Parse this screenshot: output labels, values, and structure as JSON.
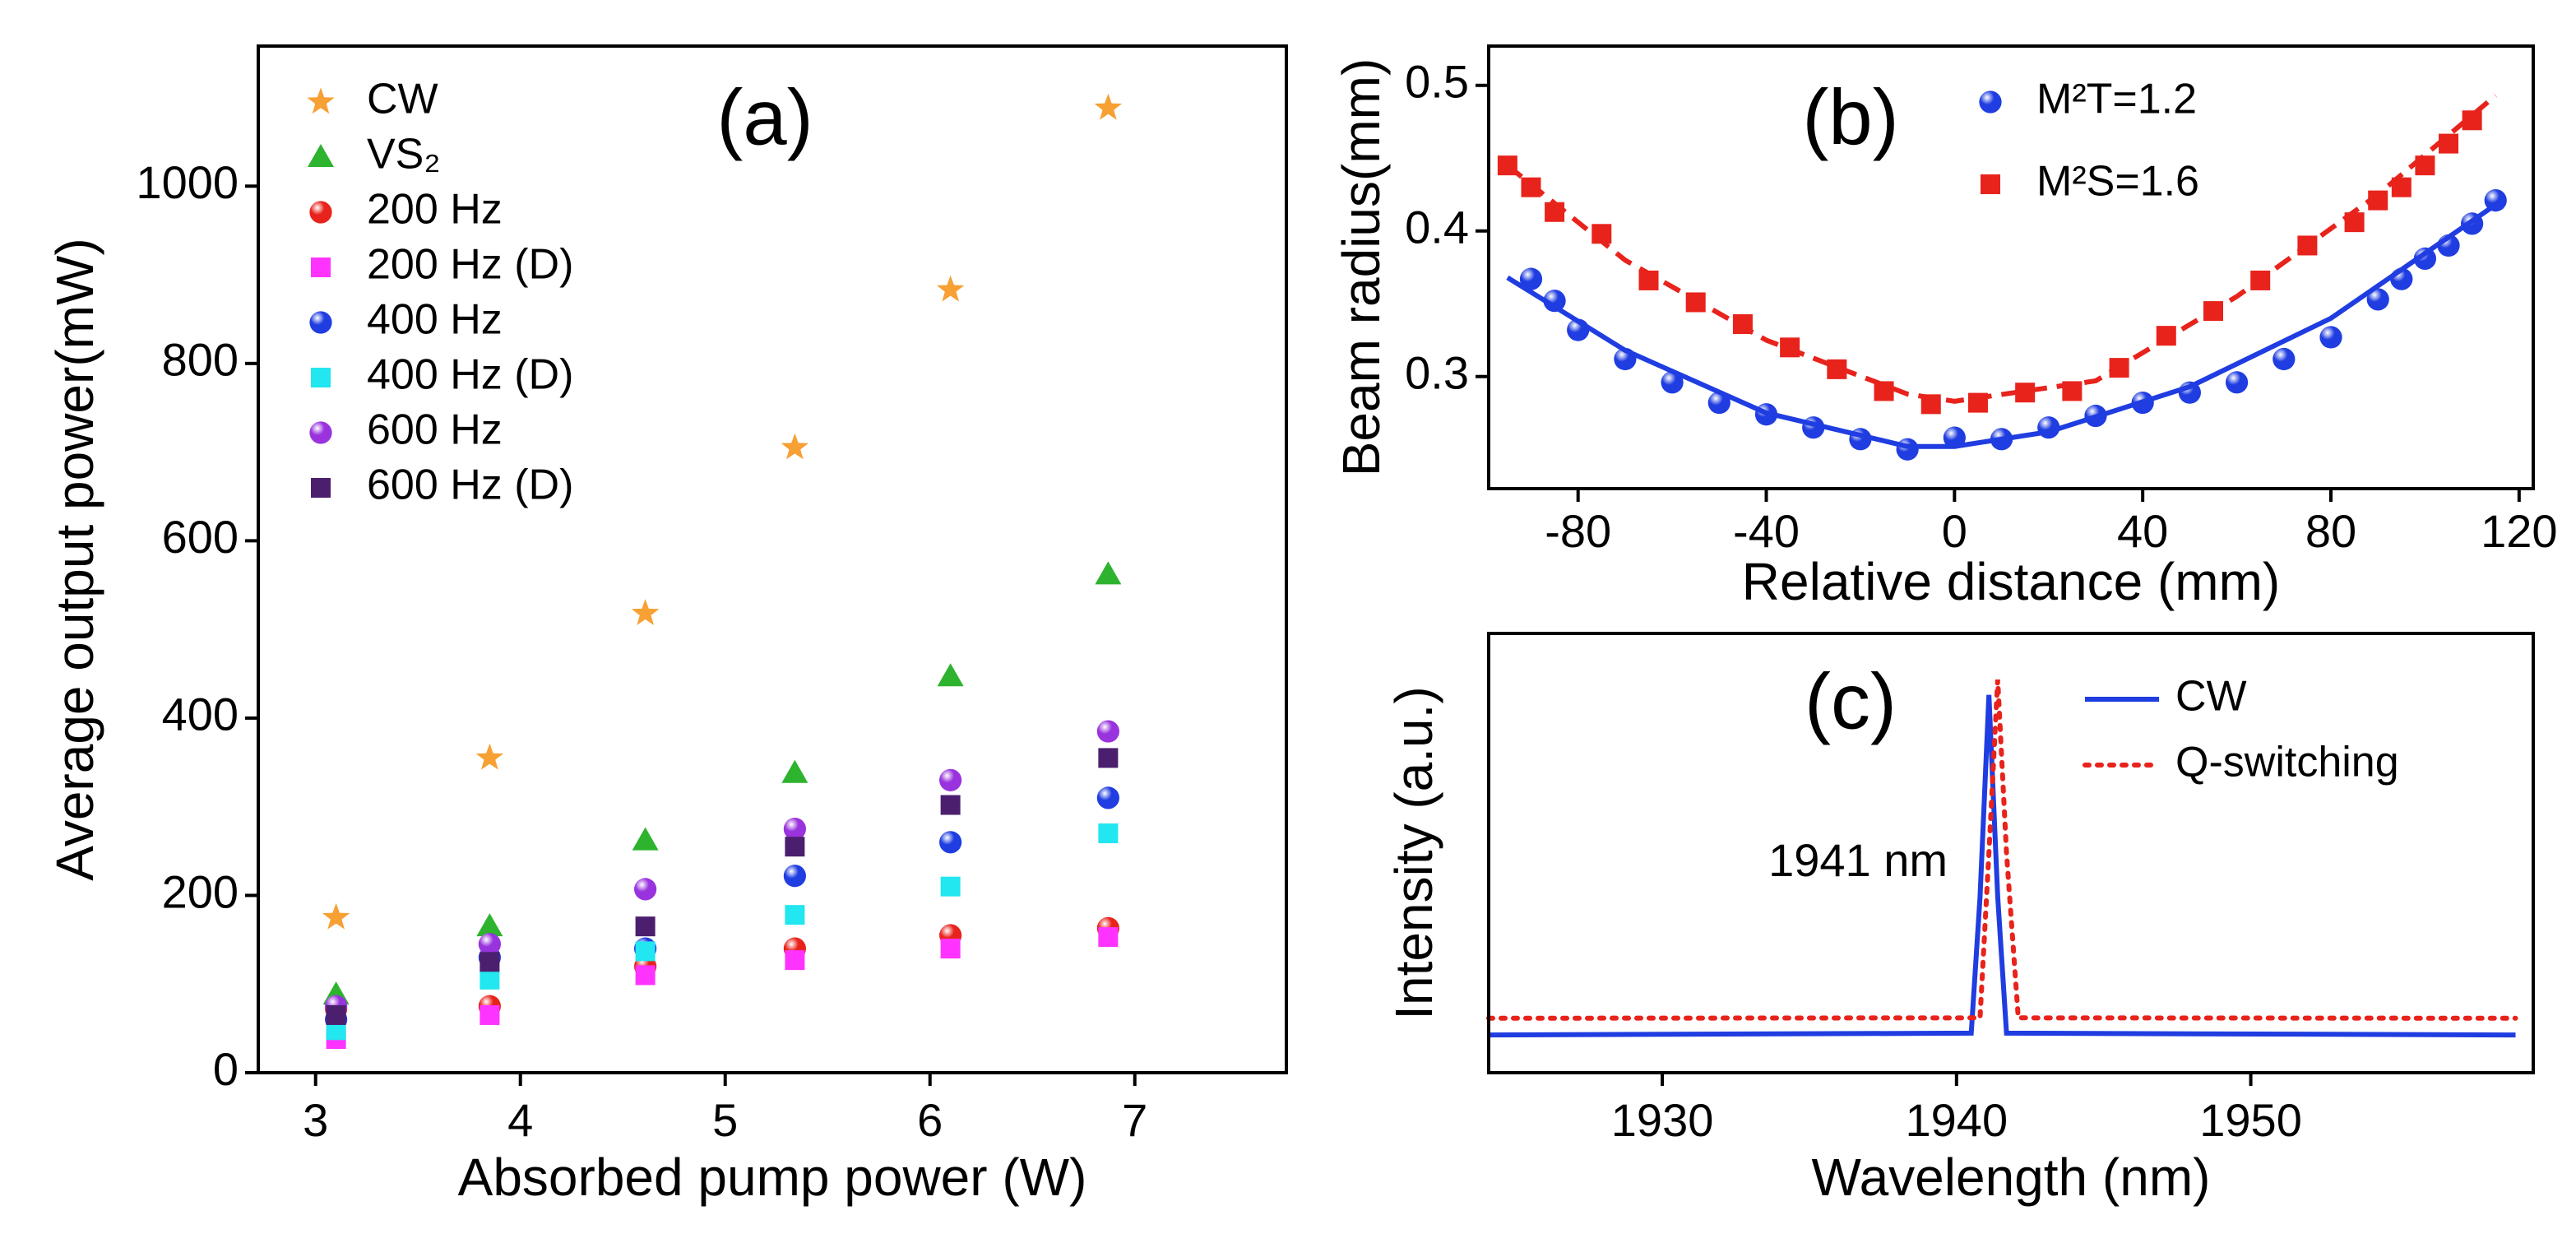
{
  "chart_data": [
    {
      "type": "scatter",
      "panel_label": "(a)",
      "x_label": "Absorbed pump power (W)",
      "y_label": "Average output power(mW)",
      "legend": "upper left",
      "x": [
        3.1,
        3.85,
        4.61,
        5.34,
        6.1,
        6.87
      ],
      "xlim": [
        2.72,
        7.74
      ],
      "xticks": [
        3,
        4,
        5,
        6,
        7
      ],
      "ylim": [
        0,
        1158
      ],
      "yticks": [
        0,
        200,
        400,
        600,
        800,
        1000
      ],
      "series": [
        {
          "name": "CW",
          "marker": "star",
          "color": "#f7a033",
          "values": [
            175,
            355,
            518,
            705,
            883,
            1088
          ]
        },
        {
          "name": "VS₂",
          "marker": "triangle",
          "color": "#2db32d",
          "values": [
            88,
            165,
            262,
            338,
            447,
            562
          ]
        },
        {
          "name": "200 Hz",
          "marker": "sphere",
          "color": "#e8231c",
          "values": [
            72,
            75,
            120,
            140,
            155,
            163
          ]
        },
        {
          "name": "200 Hz (D)",
          "marker": "square",
          "color": "#ff33ff",
          "values": [
            38,
            65,
            110,
            127,
            140,
            153
          ]
        },
        {
          "name": "400 Hz",
          "marker": "sphere",
          "color": "#1f3de0",
          "values": [
            60,
            130,
            140,
            222,
            260,
            310
          ]
        },
        {
          "name": "400 Hz (D)",
          "marker": "square",
          "color": "#22e6f0",
          "values": [
            48,
            105,
            137,
            178,
            210,
            270
          ]
        },
        {
          "name": "600 Hz",
          "marker": "sphere",
          "color": "#9933dd",
          "values": [
            75,
            145,
            207,
            275,
            330,
            385
          ]
        },
        {
          "name": "600 Hz (D)",
          "marker": "square",
          "color": "#4b1f6e",
          "values": [
            65,
            125,
            165,
            255,
            302,
            355
          ]
        }
      ]
    },
    {
      "type": "scatter",
      "panel_label": "(b)",
      "x_label": "Relative distance (mm)",
      "y_label": "Beam radius(mm)",
      "legend": "upper right",
      "xlim": [
        -99,
        123
      ],
      "xticks": [
        -80,
        -40,
        0,
        40,
        80,
        120
      ],
      "ylim": [
        0.223,
        0.527
      ],
      "yticks": [
        0.3,
        0.4,
        0.5
      ],
      "series": [
        {
          "name": "M²T=1.2",
          "marker": "sphere",
          "color": "#1f3de0",
          "x": [
            -90,
            -85,
            -80,
            -70,
            -60,
            -50,
            -40,
            -30,
            -20,
            -10,
            0,
            10,
            20,
            30,
            40,
            50,
            60,
            70,
            80,
            90,
            95,
            100,
            105,
            110,
            115
          ],
          "values": [
            0.367,
            0.352,
            0.332,
            0.312,
            0.296,
            0.282,
            0.274,
            0.265,
            0.257,
            0.25,
            0.258,
            0.257,
            0.265,
            0.273,
            0.282,
            0.289,
            0.296,
            0.312,
            0.327,
            0.353,
            0.367,
            0.381,
            0.39,
            0.405,
            0.421
          ]
        },
        {
          "name": "M²S=1.6",
          "marker": "square",
          "color": "#e8231c",
          "x": [
            -95,
            -90,
            -85,
            -75,
            -65,
            -55,
            -45,
            -35,
            -25,
            -15,
            -5,
            5,
            15,
            25,
            35,
            45,
            55,
            65,
            75,
            85,
            90,
            95,
            100,
            105,
            110
          ],
          "values": [
            0.445,
            0.43,
            0.413,
            0.398,
            0.366,
            0.351,
            0.336,
            0.32,
            0.305,
            0.29,
            0.281,
            0.282,
            0.289,
            0.29,
            0.306,
            0.328,
            0.345,
            0.366,
            0.39,
            0.406,
            0.421,
            0.43,
            0.445,
            0.46,
            0.476
          ]
        },
        {
          "line": "solid",
          "color": "#1f3de0",
          "x": [
            -95,
            -70,
            -40,
            -10,
            0,
            20,
            50,
            80,
            115
          ],
          "values": [
            0.368,
            0.318,
            0.275,
            0.252,
            0.252,
            0.262,
            0.293,
            0.34,
            0.418
          ]
        },
        {
          "line": "dashed",
          "color": "#e8231c",
          "x": [
            -95,
            -70,
            -40,
            -10,
            0,
            30,
            60,
            90,
            115
          ],
          "values": [
            0.445,
            0.38,
            0.325,
            0.288,
            0.283,
            0.297,
            0.355,
            0.425,
            0.493
          ]
        }
      ]
    },
    {
      "type": "line",
      "panel_label": "(c)",
      "x_label": "Wavelength (nm)",
      "y_label": "Intensity (a.u.)",
      "legend": "upper right",
      "annotation": "1941 nm",
      "xlim": [
        1924.1,
        1959.6
      ],
      "xticks": [
        1930,
        1940,
        1950
      ],
      "ylim": [
        0,
        1
      ],
      "yticks": [],
      "series": [
        {
          "name": "CW",
          "line": "solid",
          "color": "#1f3de0",
          "x": [
            1924.1,
            1940.5,
            1940.8,
            1941.1,
            1941.4,
            1941.7,
            1959
          ],
          "values": [
            0.086,
            0.09,
            0.4,
            0.86,
            0.4,
            0.09,
            0.086
          ]
        },
        {
          "name": "Q-switching",
          "line": "dotted",
          "color": "#e8231c",
          "x": [
            1924.1,
            1940.8,
            1941.1,
            1941.4,
            1941.7,
            1942.1,
            1959
          ],
          "values": [
            0.124,
            0.125,
            0.5,
            0.895,
            0.5,
            0.125,
            0.124
          ]
        }
      ]
    }
  ]
}
